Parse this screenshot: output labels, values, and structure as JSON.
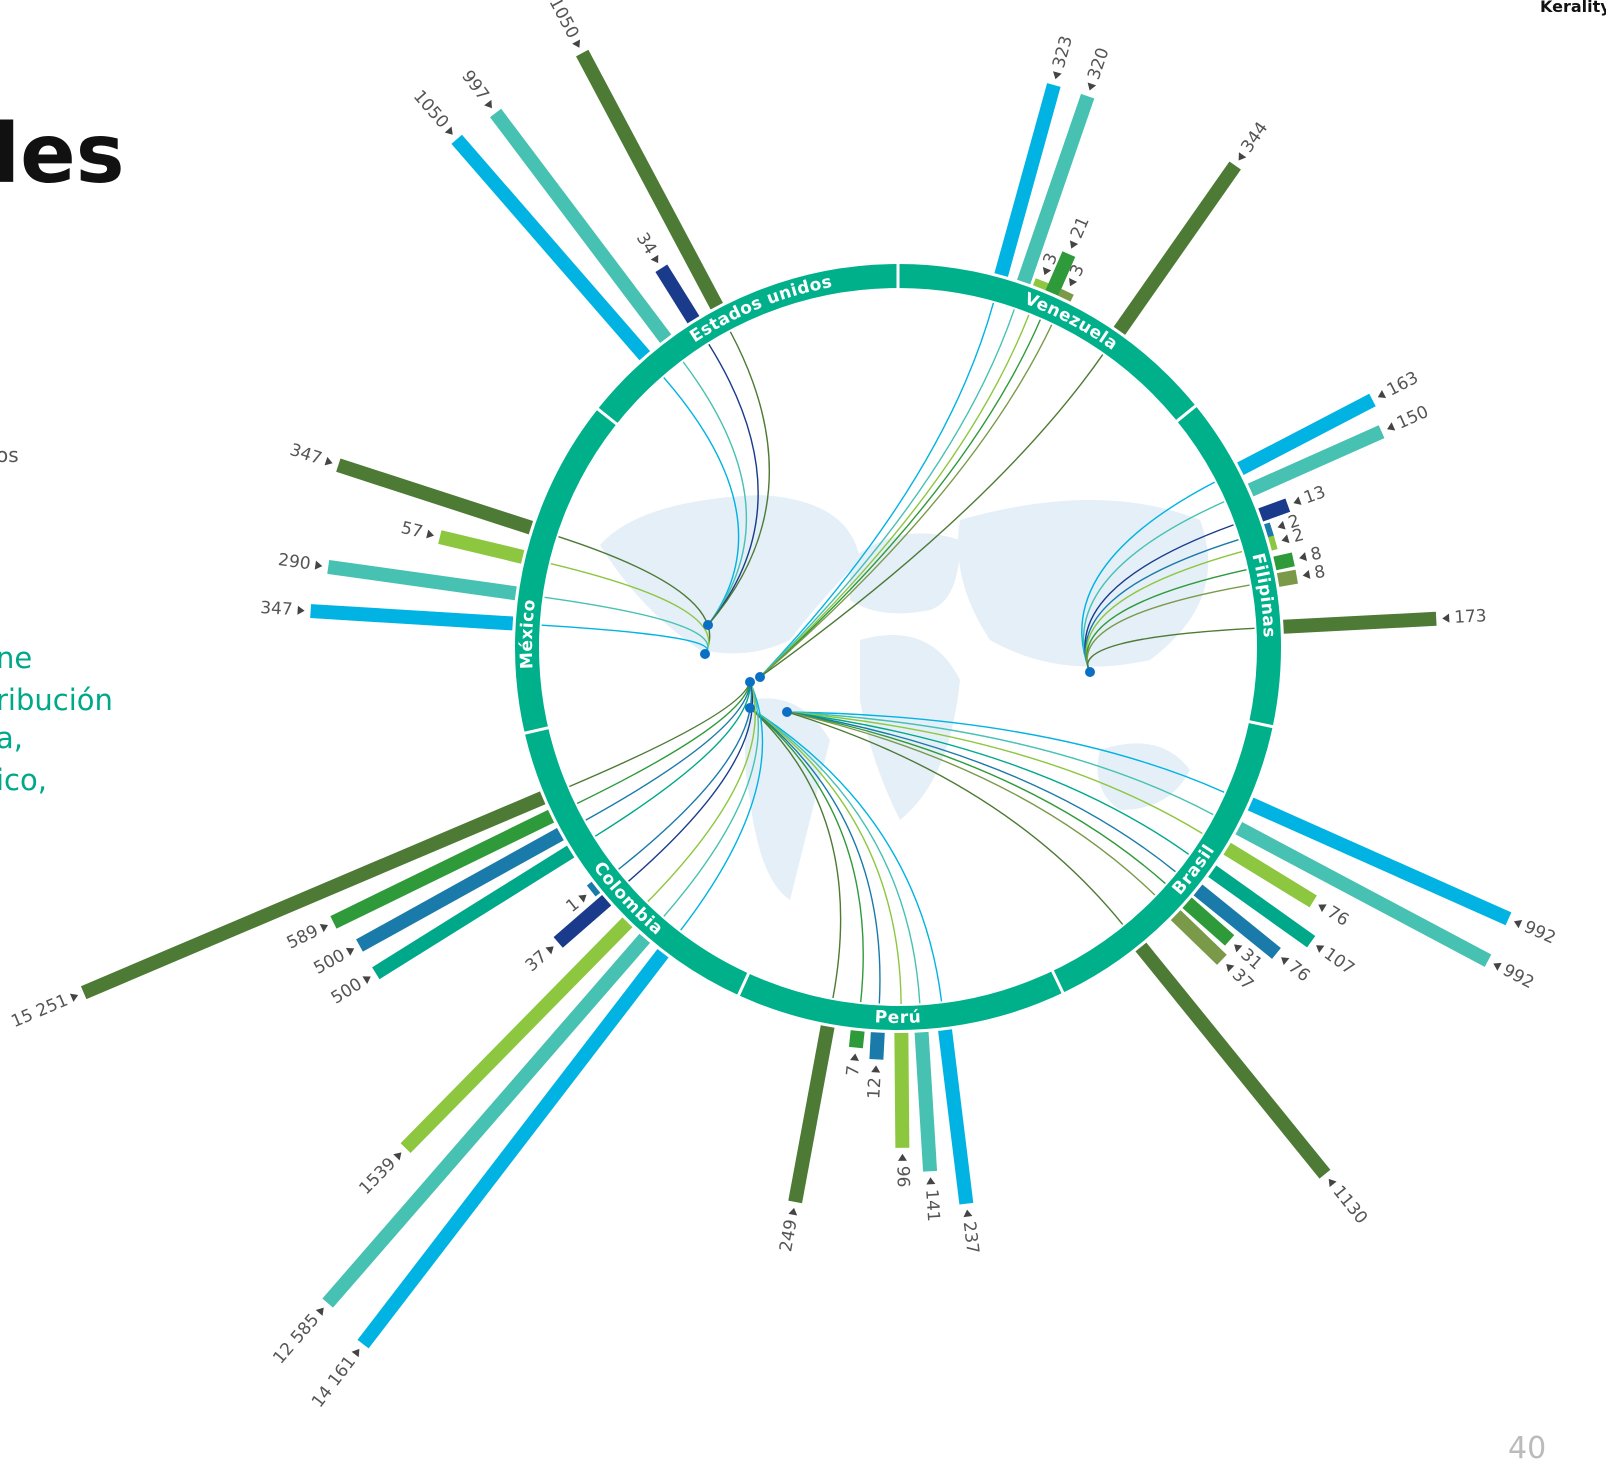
{
  "header": {
    "brand": "Kerality",
    "title_fragment": "les",
    "page_number": "40"
  },
  "side_text": {
    "gray": "os",
    "teal": [
      "ne",
      "ribución",
      "a,",
      "ico,"
    ]
  },
  "chart_data": {
    "type": "radial-bar",
    "nodes": [
      {
        "name": "Estados unidos",
        "values": [
          1050,
          997,
          34,
          1050
        ],
        "colors": [
          "#00b3e3",
          "#47c1b2",
          "#1a3b8c",
          "#4d7a35"
        ]
      },
      {
        "name": "Venezuela",
        "values": [
          323,
          320,
          3,
          21,
          3,
          344
        ],
        "colors": [
          "#00b3e3",
          "#47c1b2",
          "#8dc63f",
          "#2e9a3a",
          "#7a9a4a",
          "#4d7a35"
        ]
      },
      {
        "name": "Filipinas",
        "values": [
          163,
          150,
          13,
          2,
          2,
          8,
          8,
          173
        ],
        "colors": [
          "#00b3e3",
          "#47c1b2",
          "#1a3b8c",
          "#1a7aaa",
          "#8dc63f",
          "#2e9a3a",
          "#7a9a4a",
          "#4d7a35"
        ]
      },
      {
        "name": "Brasil",
        "values": [
          992,
          992,
          76,
          107,
          76,
          31,
          37,
          1130
        ],
        "colors": [
          "#00b3e3",
          "#47c1b2",
          "#8dc63f",
          "#00a88a",
          "#1a7aaa",
          "#2e9a3a",
          "#7a9a4a",
          "#4d7a35"
        ]
      },
      {
        "name": "Perú",
        "values": [
          237,
          141,
          96,
          12,
          7,
          249
        ],
        "colors": [
          "#00b3e3",
          "#47c1b2",
          "#8dc63f",
          "#1a7aaa",
          "#2e9a3a",
          "#4d7a35"
        ]
      },
      {
        "name": "Colombia",
        "values": [
          14161,
          12585,
          1539,
          37,
          1,
          500,
          500,
          589,
          15251
        ],
        "value_labels": [
          "14 161",
          "12 585",
          "1539",
          "37",
          "1",
          "500",
          "500",
          "589",
          "15 251"
        ],
        "colors": [
          "#00b3e3",
          "#47c1b2",
          "#8dc63f",
          "#1a3b8c",
          "#1a7aaa",
          "#00a88a",
          "#1a7aaa",
          "#2e9a3a",
          "#4d7a35"
        ]
      },
      {
        "name": "México",
        "values": [
          347,
          57,
          290,
          347
        ],
        "colors": [
          "#4d7a35",
          "#8dc63f",
          "#47c1b2",
          "#00b3e3"
        ]
      }
    ]
  }
}
